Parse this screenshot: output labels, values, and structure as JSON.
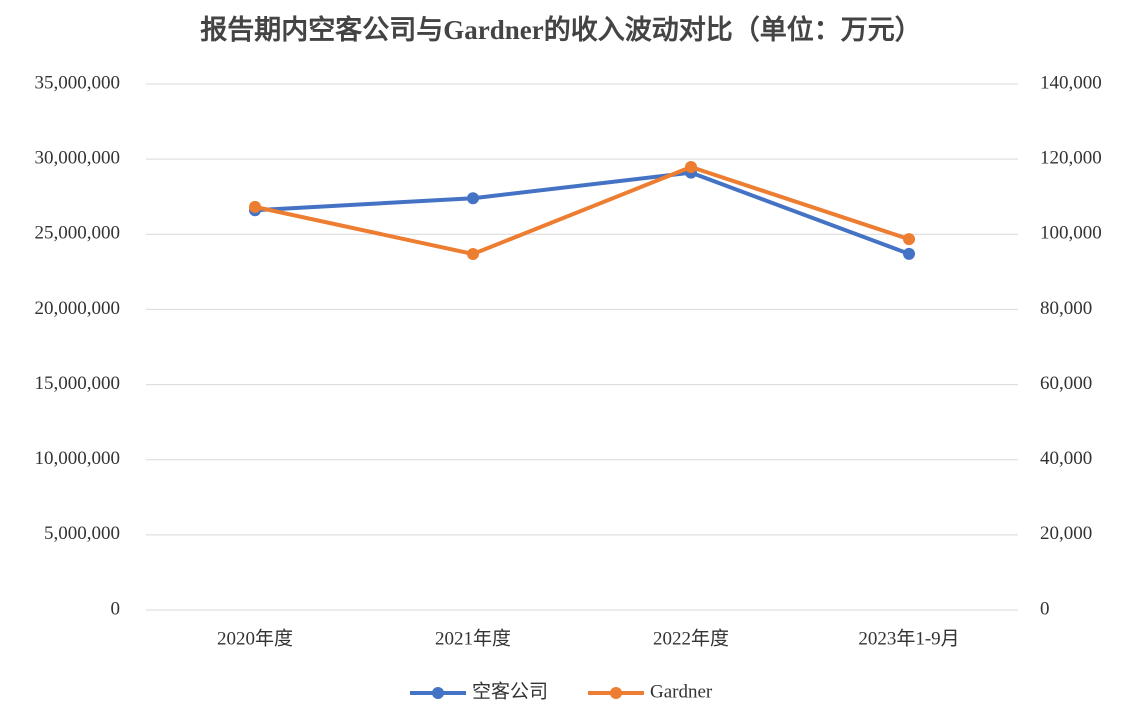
{
  "chart_data": {
    "type": "line",
    "title": "报告期内空客公司与Gardner的收入波动对比（单位：万元）",
    "categories": [
      "2020年度",
      "2021年度",
      "2022年度",
      "2023年1-9月"
    ],
    "series": [
      {
        "name": "空客公司",
        "color": "#4472c4",
        "values": [
          26600000,
          27400000,
          29100000,
          23700000
        ]
      },
      {
        "name": "Gardner",
        "color": "#ed7d31",
        "axis": "y2",
        "values": [
          107300,
          94750,
          117900,
          98700
        ]
      }
    ],
    "ylim": [
      0,
      35000000
    ],
    "yticks": [
      0,
      {
        "value": 5000000,
        "label": "5,000,000"
      },
      {
        "value": 10000000,
        "label": "10,000,000"
      },
      {
        "value": 15000000,
        "label": "15,000,000"
      },
      {
        "value": 20000000,
        "label": "20,000,000"
      },
      {
        "value": 25000000,
        "label": "25,000,000"
      },
      {
        "value": 30000000,
        "label": "30,000,000"
      },
      {
        "value": 35000000,
        "label": "35,000,000"
      }
    ],
    "y2lim": [
      0,
      140000
    ],
    "y2ticks": [
      0,
      {
        "value": 20000,
        "label": "20,000"
      },
      {
        "value": 40000,
        "label": "40,000"
      },
      {
        "value": 60000,
        "label": "60,000"
      },
      {
        "value": 80000,
        "label": "80,000"
      },
      {
        "value": 100000,
        "label": "100,000"
      },
      {
        "value": 120000,
        "label": "120,000"
      },
      {
        "value": 140000,
        "label": "140,000"
      }
    ],
    "grid": true,
    "legend": "bottom"
  }
}
